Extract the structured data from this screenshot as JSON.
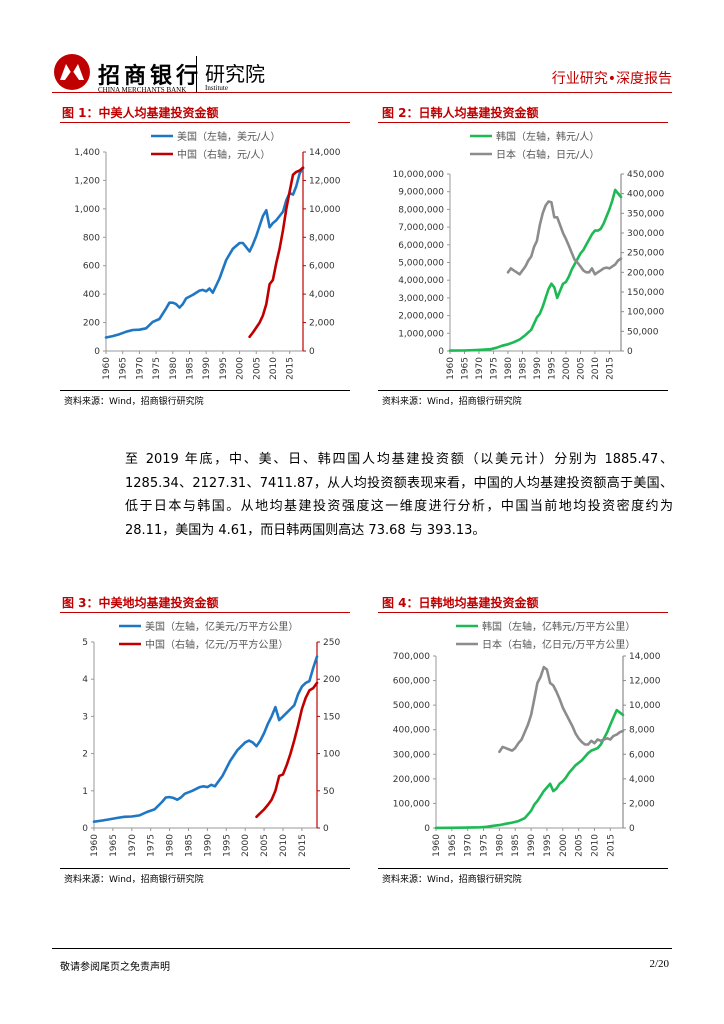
{
  "header": {
    "brand": "招商银行",
    "brand_en": "CHINA MERCHANTS BANK",
    "institute": "研究院",
    "institute_en": "Institute",
    "report_type": "行业研究•深度报告"
  },
  "paragraph": "至 2019 年底，中、美、日、韩四国人均基建投资额（以美元计）分别为 1885.47、1285.34、2127.31、7411.87，从人均投资额表现来看，中国的人均基建投资额高于美国、低于日本与韩国。从地均基建投资强度这一维度进行分析，中国当前地均投资密度约为 28.11，美国为 4.61，而日韩两国则高达 73.68 与 393.13。",
  "footer": {
    "disclaimer": "敬请参阅尾页之免责声明",
    "page": "2/20"
  },
  "colors": {
    "red": "#c00000",
    "blue": "#1f77c4",
    "green": "#1db954",
    "gray": "#8c8c8c"
  },
  "chart_data": [
    {
      "id": "fig1",
      "type": "line",
      "title": "图 1：中美人均基建投资金额",
      "source": "资料来源：Wind，招商银行研究院",
      "x_ticks": [
        1960,
        1965,
        1970,
        1975,
        1980,
        1985,
        1990,
        1995,
        2000,
        2005,
        2010,
        2015
      ],
      "xlim": [
        1960,
        2019
      ],
      "left_axis": {
        "ylim": [
          0,
          1400
        ],
        "ticks": [
          "0",
          "200",
          "400",
          "600",
          "800",
          "1,000",
          "1,200",
          "1,400"
        ]
      },
      "right_axis": {
        "ylim": [
          0,
          14000
        ],
        "ticks": [
          "0",
          "2,000",
          "4,000",
          "6,000",
          "8,000",
          "10,000",
          "12,000",
          "14,000"
        ]
      },
      "series": [
        {
          "name": "美国（左轴，美元/人）",
          "axis": "left",
          "color": "#1f77c4",
          "x": [
            1960,
            1962,
            1964,
            1966,
            1968,
            1970,
            1972,
            1974,
            1976,
            1978,
            1979,
            1980,
            1981,
            1982,
            1983,
            1984,
            1986,
            1988,
            1989,
            1990,
            1991,
            1992,
            1994,
            1996,
            1998,
            2000,
            2001,
            2002,
            2003,
            2004,
            2005,
            2006,
            2007,
            2008,
            2009,
            2010,
            2011,
            2012,
            2013,
            2014,
            2015,
            2016,
            2017,
            2018,
            2019
          ],
          "y": [
            95,
            105,
            118,
            135,
            148,
            150,
            160,
            205,
            225,
            300,
            340,
            340,
            330,
            305,
            330,
            370,
            395,
            425,
            430,
            420,
            440,
            410,
            510,
            640,
            720,
            760,
            760,
            730,
            700,
            750,
            810,
            880,
            950,
            990,
            870,
            900,
            920,
            950,
            980,
            1060,
            1110,
            1100,
            1160,
            1250,
            1285
          ]
        },
        {
          "name": "中国（右轴，元/人）",
          "axis": "right",
          "color": "#c00000",
          "x": [
            2003,
            2004,
            2005,
            2006,
            2007,
            2008,
            2009,
            2010,
            2011,
            2012,
            2013,
            2014,
            2015,
            2016,
            2017,
            2018,
            2019
          ],
          "y": [
            1000,
            1300,
            1650,
            2000,
            2500,
            3300,
            4700,
            5000,
            6200,
            7200,
            8500,
            10000,
            11200,
            12400,
            12600,
            12700,
            12900
          ]
        }
      ]
    },
    {
      "id": "fig2",
      "type": "line",
      "title": "图 2：日韩人均基建投资金额",
      "source": "资料来源：Wind，招商银行研究院",
      "x_ticks": [
        1960,
        1965,
        1970,
        1975,
        1980,
        1985,
        1990,
        1995,
        2000,
        2005,
        2010,
        2015
      ],
      "xlim": [
        1960,
        2019
      ],
      "left_axis": {
        "ylim": [
          0,
          10000000
        ],
        "ticks": [
          "0",
          "1,000,000",
          "2,000,000",
          "3,000,000",
          "4,000,000",
          "5,000,000",
          "6,000,000",
          "7,000,000",
          "8,000,000",
          "9,000,000",
          "10,000,000"
        ]
      },
      "right_axis": {
        "ylim": [
          0,
          450000
        ],
        "ticks": [
          "0",
          "50,000",
          "100,000",
          "150,000",
          "200,000",
          "250,000",
          "300,000",
          "350,000",
          "400,000",
          "450,000"
        ]
      },
      "series": [
        {
          "name": "韩国（左轴，韩元/人）",
          "axis": "left",
          "color": "#1db954",
          "x": [
            1960,
            1965,
            1970,
            1974,
            1976,
            1978,
            1980,
            1982,
            1984,
            1986,
            1988,
            1990,
            1991,
            1992,
            1993,
            1994,
            1995,
            1996,
            1997,
            1998,
            1999,
            2000,
            2001,
            2002,
            2003,
            2004,
            2005,
            2006,
            2007,
            2008,
            2009,
            2010,
            2011,
            2012,
            2013,
            2014,
            2015,
            2016,
            2017,
            2018,
            2019
          ],
          "y": [
            20000,
            30000,
            60000,
            100000,
            180000,
            300000,
            380000,
            500000,
            650000,
            900000,
            1200000,
            1900000,
            2100000,
            2500000,
            3000000,
            3500000,
            3800000,
            3600000,
            3000000,
            3400000,
            3800000,
            3900000,
            4200000,
            4600000,
            4900000,
            5200000,
            5500000,
            5700000,
            6000000,
            6300000,
            6600000,
            6800000,
            6800000,
            6900000,
            7200000,
            7600000,
            8000000,
            8500000,
            9100000,
            8900000,
            8700000
          ]
        },
        {
          "name": "日本（右轴，日元/人）",
          "axis": "right",
          "color": "#8c8c8c",
          "x": [
            1980,
            1981,
            1982,
            1983,
            1984,
            1985,
            1986,
            1987,
            1988,
            1989,
            1990,
            1991,
            1992,
            1993,
            1994,
            1995,
            1996,
            1997,
            1998,
            1999,
            2000,
            2001,
            2002,
            2003,
            2004,
            2005,
            2006,
            2007,
            2008,
            2009,
            2010,
            2011,
            2012,
            2013,
            2014,
            2015,
            2016,
            2017,
            2018,
            2019
          ],
          "y": [
            200000,
            210000,
            205000,
            200000,
            195000,
            205000,
            215000,
            230000,
            240000,
            265000,
            280000,
            320000,
            350000,
            370000,
            380000,
            378000,
            340000,
            340000,
            320000,
            300000,
            285000,
            268000,
            250000,
            232000,
            225000,
            215000,
            205000,
            200000,
            200000,
            210000,
            195000,
            200000,
            205000,
            210000,
            212000,
            210000,
            215000,
            220000,
            230000,
            235000
          ]
        }
      ]
    },
    {
      "id": "fig3",
      "type": "line",
      "title": "图 3：中美地均基建投资金额",
      "source": "资料来源：Wind，招商银行研究院",
      "x_ticks": [
        1960,
        1965,
        1970,
        1975,
        1980,
        1985,
        1990,
        1995,
        2000,
        2005,
        2010,
        2015
      ],
      "xlim": [
        1960,
        2019
      ],
      "left_axis": {
        "ylim": [
          0,
          5
        ],
        "ticks": [
          "0",
          "1",
          "2",
          "3",
          "4",
          "5"
        ]
      },
      "right_axis": {
        "ylim": [
          0,
          250
        ],
        "ticks": [
          "0",
          "50",
          "100",
          "150",
          "200",
          "250"
        ]
      },
      "series": [
        {
          "name": "美国（左轴，亿美元/万平方公里）",
          "axis": "left",
          "color": "#1f77c4",
          "x": [
            1960,
            1962,
            1964,
            1966,
            1968,
            1970,
            1972,
            1974,
            1976,
            1978,
            1979,
            1980,
            1981,
            1982,
            1983,
            1984,
            1986,
            1988,
            1989,
            1990,
            1991,
            1992,
            1994,
            1996,
            1998,
            2000,
            2001,
            2002,
            2003,
            2004,
            2005,
            2006,
            2007,
            2008,
            2009,
            2010,
            2011,
            2012,
            2013,
            2014,
            2015,
            2016,
            2017,
            2018,
            2019
          ],
          "y": [
            0.17,
            0.2,
            0.23,
            0.27,
            0.3,
            0.31,
            0.34,
            0.43,
            0.5,
            0.7,
            0.82,
            0.83,
            0.81,
            0.76,
            0.82,
            0.92,
            1.0,
            1.1,
            1.12,
            1.1,
            1.16,
            1.12,
            1.4,
            1.8,
            2.1,
            2.3,
            2.35,
            2.3,
            2.2,
            2.35,
            2.55,
            2.8,
            3.0,
            3.25,
            2.9,
            3.0,
            3.1,
            3.2,
            3.3,
            3.6,
            3.8,
            3.9,
            3.95,
            4.3,
            4.61
          ]
        },
        {
          "name": "中国（右轴，亿元/万平方公里）",
          "axis": "right",
          "color": "#c00000",
          "x": [
            2003,
            2004,
            2005,
            2006,
            2007,
            2008,
            2009,
            2010,
            2011,
            2012,
            2013,
            2014,
            2015,
            2016,
            2017,
            2018,
            2019
          ],
          "y": [
            15,
            20,
            25,
            31,
            38,
            50,
            70,
            72,
            85,
            100,
            118,
            138,
            160,
            175,
            185,
            188,
            195
          ]
        }
      ]
    },
    {
      "id": "fig4",
      "type": "line",
      "title": "图 4：日韩地均基建投资金额",
      "source": "资料来源：Wind，招商银行研究院",
      "x_ticks": [
        1960,
        1965,
        1970,
        1975,
        1980,
        1985,
        1990,
        1995,
        2000,
        2005,
        2010,
        2015
      ],
      "xlim": [
        1960,
        2019
      ],
      "left_axis": {
        "ylim": [
          0,
          700000
        ],
        "ticks": [
          "0",
          "100,000",
          "200,000",
          "300,000",
          "400,000",
          "500,000",
          "600,000",
          "700,000"
        ]
      },
      "right_axis": {
        "ylim": [
          0,
          14000
        ],
        "ticks": [
          "0",
          "2,000",
          "4,000",
          "6,000",
          "8,000",
          "10,000",
          "12,000",
          "14,000"
        ]
      },
      "series": [
        {
          "name": "韩国（左轴，亿韩元/万平方公里）",
          "axis": "left",
          "color": "#1db954",
          "x": [
            1960,
            1965,
            1970,
            1974,
            1976,
            1978,
            1980,
            1982,
            1984,
            1986,
            1988,
            1990,
            1991,
            1992,
            1993,
            1994,
            1995,
            1996,
            1997,
            1998,
            1999,
            2000,
            2001,
            2002,
            2003,
            2004,
            2005,
            2006,
            2007,
            2008,
            2009,
            2010,
            2011,
            2012,
            2013,
            2014,
            2015,
            2016,
            2017,
            2018,
            2019
          ],
          "y": [
            500,
            800,
            1500,
            3000,
            5000,
            9000,
            12000,
            17000,
            22000,
            28000,
            40000,
            70000,
            95000,
            110000,
            130000,
            150000,
            165000,
            180000,
            150000,
            160000,
            180000,
            190000,
            205000,
            225000,
            240000,
            255000,
            265000,
            275000,
            290000,
            305000,
            315000,
            320000,
            325000,
            340000,
            365000,
            390000,
            420000,
            450000,
            480000,
            470000,
            460000
          ]
        },
        {
          "name": "日本（右轴，亿日元/万平方公里）",
          "axis": "right",
          "color": "#8c8c8c",
          "x": [
            1980,
            1981,
            1982,
            1983,
            1984,
            1985,
            1986,
            1987,
            1988,
            1989,
            1990,
            1991,
            1992,
            1993,
            1994,
            1995,
            1996,
            1997,
            1998,
            1999,
            2000,
            2001,
            2002,
            2003,
            2004,
            2005,
            2006,
            2007,
            2008,
            2009,
            2010,
            2011,
            2012,
            2013,
            2014,
            2015,
            2016,
            2017,
            2018,
            2019
          ],
          "y": [
            6200,
            6600,
            6500,
            6400,
            6300,
            6500,
            6900,
            7200,
            7800,
            8400,
            9200,
            10500,
            11800,
            12300,
            13100,
            12900,
            11800,
            11600,
            11100,
            10500,
            9800,
            9300,
            8800,
            8300,
            7700,
            7300,
            7000,
            6800,
            6800,
            7100,
            6900,
            7200,
            7100,
            7200,
            7300,
            7200,
            7500,
            7600,
            7800,
            7900
          ]
        }
      ]
    }
  ]
}
